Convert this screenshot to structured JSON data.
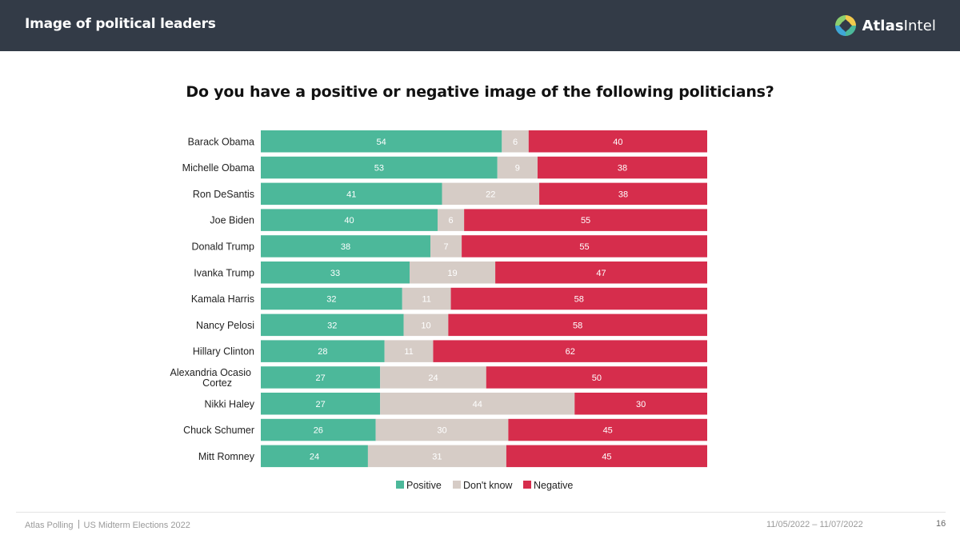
{
  "header": {
    "title": "Image of political leaders",
    "brand_bold": "Atlas",
    "brand_light": "Intel"
  },
  "chart_data": {
    "type": "bar",
    "orientation": "horizontal",
    "stacked": true,
    "normalized": true,
    "title": "Do you have a positive or negative image of the following politicians?",
    "categories": [
      "Barack Obama",
      "Michelle Obama",
      "Ron DeSantis",
      "Joe Biden",
      "Donald Trump",
      "Ivanka Trump",
      "Kamala Harris",
      "Nancy Pelosi",
      "Hillary Clinton",
      "Alexandria Ocasio Cortez",
      "Nikki Haley",
      "Chuck Schumer",
      "Mitt Romney"
    ],
    "series": [
      {
        "name": "Positive",
        "color": "#4cb89a",
        "values": [
          54,
          53,
          41,
          40,
          38,
          33,
          32,
          32,
          28,
          27,
          27,
          26,
          24
        ]
      },
      {
        "name": "Don't know",
        "color": "#d6ccc6",
        "values": [
          6,
          9,
          22,
          6,
          7,
          19,
          11,
          10,
          11,
          24,
          44,
          30,
          31
        ]
      },
      {
        "name": "Negative",
        "color": "#d62d4c",
        "values": [
          40,
          38,
          38,
          55,
          55,
          47,
          58,
          58,
          62,
          50,
          30,
          45,
          45
        ]
      }
    ],
    "legend": "bottom-center",
    "grid": false
  },
  "footer": {
    "source": "Atlas Polling",
    "survey": "US Midterm Elections 2022",
    "date_range": "11/05/2022 – 11/07/2022",
    "page": "16"
  }
}
